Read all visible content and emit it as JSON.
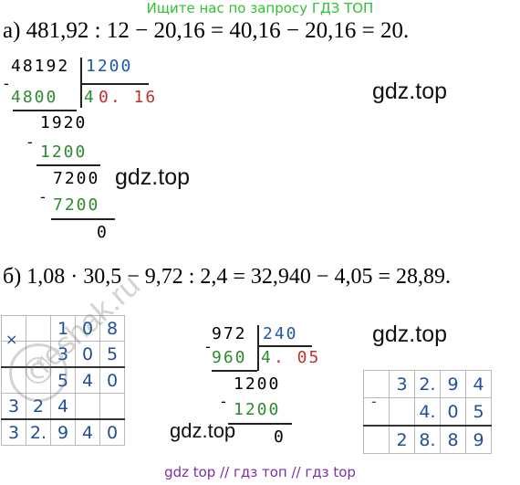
{
  "header": {
    "text": "Ищите нас по запросу ГДЗ ТОП",
    "color": "#2fc42f"
  },
  "part_a": {
    "equation": "а) 481,92 : 12 − 20,16 = 40,16 − 20,16 = 20.",
    "division": {
      "dividend": "48192",
      "divisor": "1200",
      "subtrahend1": "4800",
      "quotient_a": "4",
      "quotient_b": "0. 16",
      "r1": "1920",
      "s2": "1200",
      "r2": "7200",
      "s3": "7200",
      "rem": "0"
    }
  },
  "part_b": {
    "equation": "б) 1,08 · 30,5 − 9,72 : 2,4 = 32,940 − 4,05 = 28,89.",
    "division": {
      "dividend": "972",
      "divisor": "240",
      "subtrahend1": "960",
      "quotient_a": "4",
      "quotient_b": ". 05",
      "r1": "1200",
      "s2": "1200",
      "rem": "0"
    },
    "multiplication": {
      "rows": [
        [
          "",
          "",
          "1",
          "0",
          "8"
        ],
        [
          "",
          "",
          "3",
          "0",
          "5"
        ],
        [
          "",
          "",
          "5",
          "4",
          "0"
        ],
        [
          "3",
          "2",
          "4",
          "",
          ""
        ],
        [
          "3",
          "2.",
          "9",
          "4",
          "0"
        ]
      ],
      "sign": "×"
    },
    "subtraction": {
      "sign": "-",
      "rows": [
        [
          "",
          "3",
          "2.",
          "9",
          "4"
        ],
        [
          "",
          "",
          "4.",
          "0",
          "5"
        ],
        [
          "",
          "2",
          "8.",
          "8",
          "9"
        ]
      ]
    }
  },
  "watermarks": [
    "gdz.top",
    "gdz.top",
    "gdz.top",
    "gdz.top",
    "gdz.top"
  ],
  "reshak": {
    "text": "reshak.ru",
    "symbol": "©"
  },
  "footer": {
    "text": "gdz top  //  гдз топ  //  гдз top",
    "color": "#7b2fa5"
  }
}
